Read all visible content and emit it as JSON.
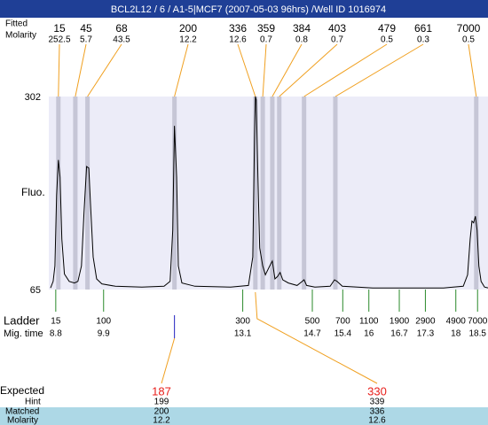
{
  "title": "BCL2L12 / 6 / A1-5|MCF7 (2007-05-03 96hrs) /Well ID 1016974",
  "chart_data": {
    "type": "line",
    "y_label": "Fluo.",
    "ylim": [
      65,
      302
    ],
    "yticks": [
      65,
      302
    ],
    "xlim": [
      8.64,
      18.74
    ],
    "color": "#000000",
    "x": [
      8.68,
      8.74,
      8.78,
      8.82,
      8.86,
      8.9,
      8.94,
      9.0,
      9.11,
      9.23,
      9.31,
      9.39,
      9.45,
      9.51,
      9.56,
      9.6,
      9.66,
      9.74,
      9.86,
      10.17,
      10.78,
      11.29,
      11.43,
      11.49,
      11.53,
      11.58,
      11.62,
      11.7,
      12.0,
      12.82,
      13.23,
      13.33,
      13.37,
      13.39,
      13.41,
      13.45,
      13.49,
      13.56,
      13.62,
      13.72,
      13.78,
      13.84,
      13.9,
      13.96,
      14.02,
      14.15,
      14.35,
      14.47,
      14.51,
      14.57,
      14.76,
      15.11,
      15.21,
      15.27,
      15.39,
      16.09,
      17.72,
      18.17,
      18.27,
      18.33,
      18.37,
      18.41,
      18.45,
      18.49,
      18.53,
      18.58,
      18.66,
      18.74
    ],
    "values": [
      67,
      75,
      94,
      181,
      224,
      203,
      127,
      84,
      75,
      73,
      75,
      94,
      160,
      216,
      214,
      170,
      105,
      78,
      72,
      69,
      68,
      69,
      75,
      138,
      266,
      203,
      94,
      73,
      69,
      68,
      70,
      105,
      247,
      302,
      298,
      203,
      116,
      94,
      83,
      94,
      100,
      78,
      81,
      86,
      77,
      73,
      70,
      75,
      77,
      70,
      68,
      69,
      77,
      75,
      69,
      67,
      67,
      69,
      83,
      127,
      149,
      147,
      155,
      138,
      94,
      75,
      68,
      67
    ],
    "peaks": {
      "label": "Fitted",
      "molarity_label": "Molarity",
      "sizes": [
        15,
        45,
        68,
        200,
        336,
        359,
        384,
        403,
        479,
        661,
        7000
      ],
      "molarities": [
        252.5,
        5.7,
        43.5,
        12.2,
        12.6,
        0.7,
        0.8,
        0.7,
        0.5,
        0.3,
        0.5
      ],
      "times": [
        8.86,
        9.25,
        9.53,
        11.53,
        13.39,
        13.56,
        13.78,
        13.94,
        14.51,
        15.23,
        18.47
      ]
    },
    "ladder": {
      "label": "Ladder",
      "time_label": "Mig. time",
      "sizes": [
        15,
        100,
        300,
        500,
        700,
        1100,
        1900,
        2900,
        4900,
        7000
      ],
      "times": [
        8.8,
        9.9,
        13.1,
        14.7,
        15.4,
        16,
        16.7,
        17.3,
        18,
        18.5
      ]
    }
  },
  "expected": {
    "label": "Expected",
    "values": [
      187,
      330
    ],
    "hint_label": "Hint",
    "hints": [
      199,
      339
    ],
    "matched_label": "Matched",
    "matched": [
      200,
      336
    ],
    "molarity_label": "Molarity",
    "molarities": [
      12.2,
      12.6
    ]
  }
}
